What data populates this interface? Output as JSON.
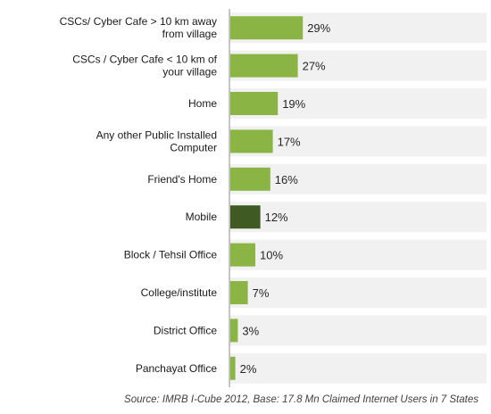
{
  "chart_data": {
    "type": "bar",
    "orientation": "horizontal",
    "categories": [
      "CSCs/ Cyber Cafe > 10 km away from village",
      "CSCs / Cyber Cafe < 10 km of your village",
      "Home",
      "Any other Public Installed Computer",
      "Friend's Home",
      "Mobile",
      "Block / Tehsil Office",
      "College/institute",
      "District Office",
      "Panchayat Office"
    ],
    "values": [
      29,
      27,
      19,
      17,
      16,
      12,
      10,
      7,
      3,
      2
    ],
    "data_labels": [
      "29%",
      "27%",
      "19%",
      "17%",
      "16%",
      "12%",
      "10%",
      "7%",
      "3%",
      "2%"
    ],
    "xlim": [
      0,
      100
    ],
    "bar_colors": [
      "#8ab443",
      "#8ab443",
      "#8ab443",
      "#8ab443",
      "#8ab443",
      "#3f5a22",
      "#8ab443",
      "#8ab443",
      "#8ab443",
      "#8ab443"
    ],
    "band_color": "#f1f1f1",
    "axis_color": "#8c8c8c",
    "source": "Source: IMRB I-Cube 2012, Base: 17.8 Mn Claimed Internet Users in 7 States"
  }
}
